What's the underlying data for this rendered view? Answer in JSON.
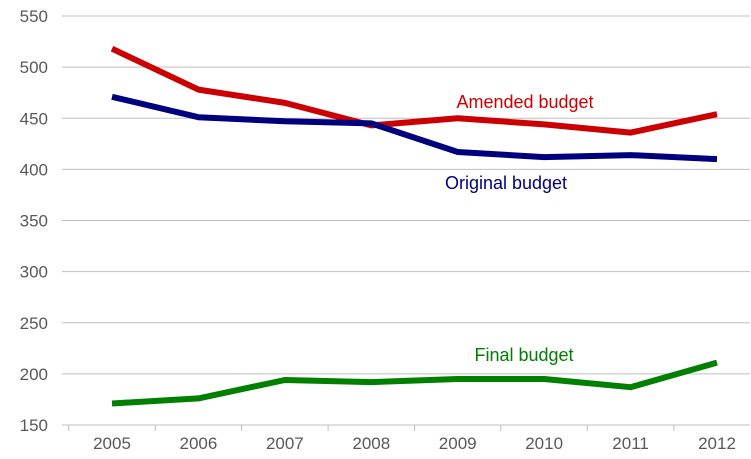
{
  "chart_data": {
    "type": "line",
    "title": "",
    "xlabel": "",
    "ylabel": "",
    "categories": [
      "2005",
      "2006",
      "2007",
      "2008",
      "2009",
      "2010",
      "2011",
      "2012"
    ],
    "ylim": [
      150,
      550
    ],
    "yticks": [
      150,
      200,
      250,
      300,
      350,
      400,
      450,
      500,
      550
    ],
    "grid": true,
    "legend": "inline labels",
    "series": [
      {
        "name": "Amended budget",
        "color": "#cc0000",
        "values": [
          518,
          478,
          465,
          443,
          450,
          444,
          436,
          454
        ]
      },
      {
        "name": "Original budget",
        "color": "#00007f",
        "values": [
          471,
          451,
          447,
          445,
          417,
          412,
          414,
          410
        ]
      },
      {
        "name": "Final budget",
        "color": "#007f00",
        "values": [
          171,
          176,
          194,
          192,
          195,
          195,
          187,
          211
        ]
      }
    ]
  }
}
